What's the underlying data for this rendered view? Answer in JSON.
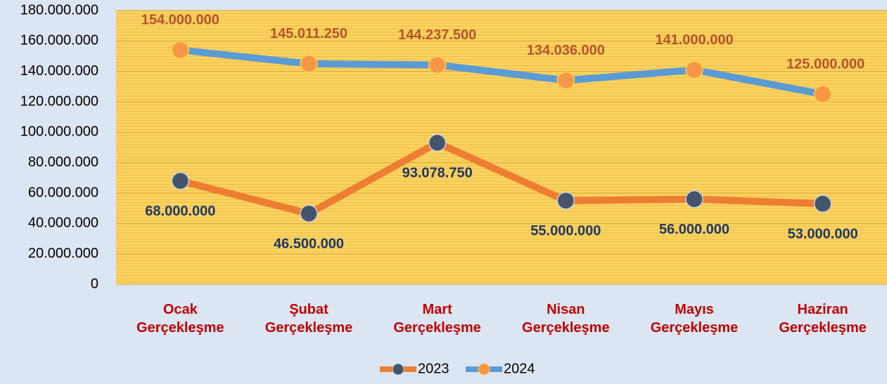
{
  "chart_data": {
    "type": "line",
    "categories": [
      "Ocak Gerçekleşme",
      "Şubat Gerçekleşme",
      "Mart Gerçekleşme",
      "Nisan Gerçekleşme",
      "Mayıs Gerçekleşme",
      "Haziran Gerçekleşme"
    ],
    "series": [
      {
        "name": "2023",
        "color": "#ed7d31",
        "marker_color": "#44546a",
        "label_color": "#1f3864",
        "values": [
          68000000,
          46500000,
          93078750,
          55000000,
          56000000,
          53000000
        ],
        "value_labels": [
          "68.000.000",
          "46.500.000",
          "93.078.750",
          "55.000.000",
          "56.000.000",
          "53.000.000"
        ]
      },
      {
        "name": "2024",
        "color": "#5b9bd5",
        "marker_color": "#f79646",
        "label_color": "#b5552b",
        "values": [
          154000000,
          145011250,
          144237500,
          134036000,
          141000000,
          125000000
        ],
        "value_labels": [
          "154.000.000",
          "145.011.250",
          "144.237.500",
          "134.036.000",
          "141.000.000",
          "125.000.000"
        ]
      }
    ],
    "ylim": [
      0,
      180000000
    ],
    "yticks": [
      {
        "value": 0,
        "label": "0"
      },
      {
        "value": 20000000,
        "label": "20.000.000"
      },
      {
        "value": 40000000,
        "label": "40.000.000"
      },
      {
        "value": 60000000,
        "label": "60.000.000"
      },
      {
        "value": 80000000,
        "label": "80.000.000"
      },
      {
        "value": 100000000,
        "label": "100.000.000"
      },
      {
        "value": 120000000,
        "label": "120.000.000"
      },
      {
        "value": 140000000,
        "label": "140.000.000"
      },
      {
        "value": 160000000,
        "label": "160.000.000"
      },
      {
        "value": 180000000,
        "label": "180.000.000"
      }
    ],
    "grid": true,
    "legend": "bottom"
  }
}
